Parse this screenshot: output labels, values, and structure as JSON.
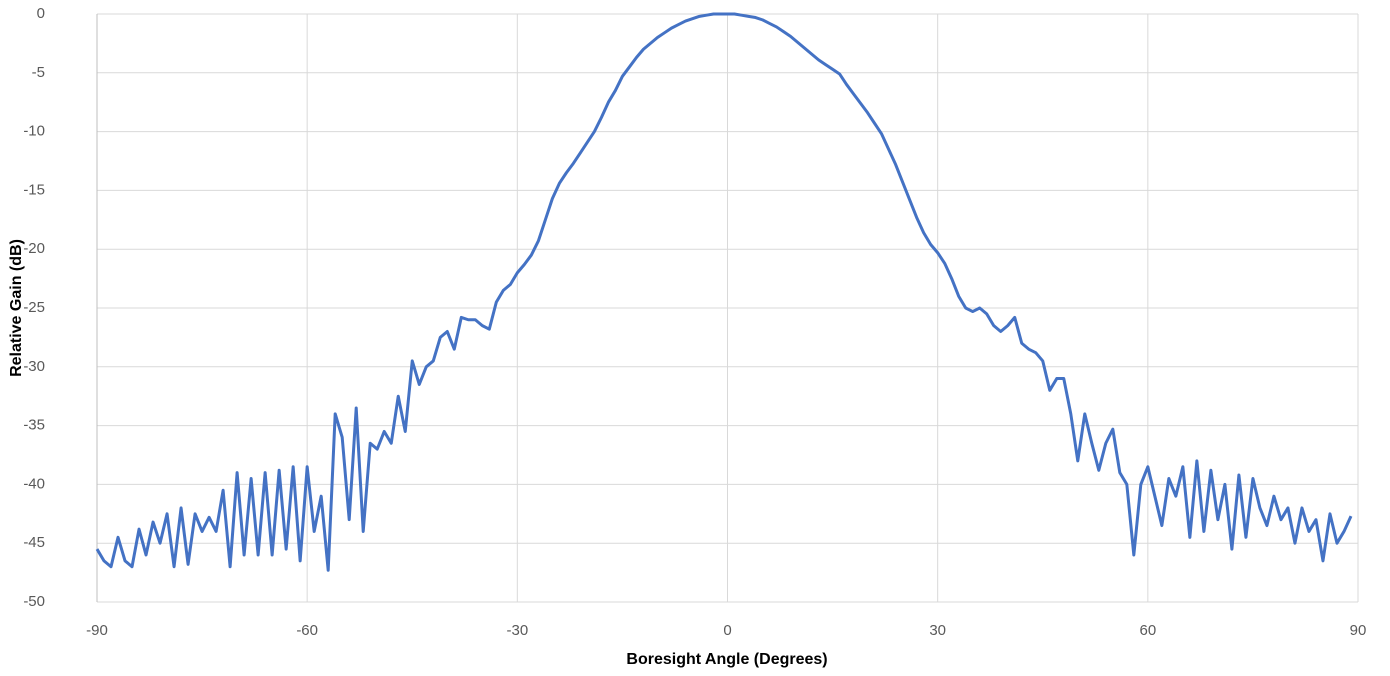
{
  "chart_data": {
    "type": "line",
    "xlabel": "Boresight Angle (Degrees)",
    "ylabel": "Relative Gain (dB)",
    "xlim": [
      -90,
      90
    ],
    "xticks": [
      -90,
      -60,
      -30,
      0,
      30,
      60,
      90
    ],
    "ylim": [
      -50,
      0
    ],
    "yticks": [
      0,
      -5,
      -10,
      -15,
      -20,
      -25,
      -30,
      -35,
      -40,
      -45,
      -50
    ],
    "grid": true,
    "x": [
      -90,
      -89,
      -88,
      -87,
      -86,
      -85,
      -84,
      -83,
      -82,
      -81,
      -80,
      -79,
      -78,
      -77,
      -76,
      -75,
      -74,
      -73,
      -72,
      -71,
      -70,
      -69,
      -68,
      -67,
      -66,
      -65,
      -64,
      -63,
      -62,
      -61,
      -60,
      -59,
      -58,
      -57,
      -56,
      -55,
      -54,
      -53,
      -52,
      -51,
      -50,
      -49,
      -48,
      -47,
      -46,
      -45,
      -44,
      -43,
      -42,
      -41,
      -40,
      -39,
      -38,
      -37,
      -36,
      -35,
      -34,
      -33,
      -32,
      -31,
      -30,
      -29,
      -28,
      -27,
      -26,
      -25,
      -24,
      -23,
      -22,
      -21,
      -20,
      -19,
      -18,
      -17,
      -16,
      -15,
      -14,
      -13,
      -12,
      -11,
      -10,
      -9,
      -8,
      -7,
      -6,
      -5,
      -4,
      -3,
      -2,
      -1,
      0,
      1,
      2,
      3,
      4,
      5,
      6,
      7,
      8,
      9,
      10,
      11,
      12,
      13,
      14,
      15,
      16,
      17,
      18,
      19,
      20,
      21,
      22,
      23,
      24,
      25,
      26,
      27,
      28,
      29,
      30,
      31,
      32,
      33,
      34,
      35,
      36,
      37,
      38,
      39,
      40,
      41,
      42,
      43,
      44,
      45,
      46,
      47,
      48,
      49,
      50,
      51,
      52,
      53,
      54,
      55,
      56,
      57,
      58,
      59,
      60,
      61,
      62,
      63,
      64,
      65,
      66,
      67,
      68,
      69,
      70,
      71,
      72,
      73,
      74,
      75,
      76,
      77,
      78,
      79,
      80,
      81,
      82,
      83,
      84,
      85,
      86,
      87,
      88,
      89
    ],
    "series": [
      {
        "color": "#4472c4",
        "values": [
          -45.5,
          -46.5,
          -47,
          -44.5,
          -46.5,
          -47,
          -43.8,
          -46,
          -43.2,
          -45,
          -42.5,
          -47,
          -42,
          -46.8,
          -42.5,
          -44,
          -42.8,
          -44,
          -40.5,
          -47,
          -39,
          -46,
          -39.5,
          -46,
          -39,
          -46,
          -38.8,
          -45.5,
          -38.5,
          -46.5,
          -38.5,
          -44,
          -41,
          -47.3,
          -34,
          -36,
          -43,
          -33.5,
          -44,
          -36.5,
          -37,
          -35.5,
          -36.5,
          -32.5,
          -35.5,
          -29.5,
          -31.5,
          -30,
          -29.5,
          -27.5,
          -27,
          -28.5,
          -25.8,
          -26,
          -26,
          -26.5,
          -26.8,
          -24.5,
          -23.5,
          -23,
          -22,
          -21.3,
          -20.5,
          -19.3,
          -17.5,
          -15.7,
          -14.4,
          -13.5,
          -12.7,
          -11.8,
          -10.9,
          -10,
          -8.8,
          -7.5,
          -6.5,
          -5.3,
          -4.5,
          -3.7,
          -3,
          -2.5,
          -2,
          -1.6,
          -1.2,
          -0.9,
          -0.6,
          -0.4,
          -0.2,
          -0.1,
          0,
          0,
          0,
          0,
          -0.1,
          -0.2,
          -0.3,
          -0.5,
          -0.8,
          -1.1,
          -1.5,
          -1.9,
          -2.4,
          -2.9,
          -3.4,
          -3.9,
          -4.3,
          -4.7,
          -5.1,
          -6,
          -6.8,
          -7.6,
          -8.4,
          -9.3,
          -10.2,
          -11.5,
          -12.8,
          -14.3,
          -15.8,
          -17.3,
          -18.6,
          -19.6,
          -20.3,
          -21.2,
          -22.5,
          -24,
          -25,
          -25.3,
          -25,
          -25.5,
          -26.5,
          -27,
          -26.5,
          -25.8,
          -28,
          -28.5,
          -28.8,
          -29.5,
          -32,
          -31,
          -31,
          -34,
          -38,
          -34,
          -36.5,
          -38.8,
          -36.5,
          -35.3,
          -39,
          -40,
          -46,
          -40,
          -38.5,
          -41,
          -43.5,
          -39.5,
          -41,
          -38.5,
          -44.5,
          -38,
          -44,
          -38.8,
          -43,
          -40,
          -45.5,
          -39.2,
          -44.5,
          -39.5,
          -42,
          -43.5,
          -41,
          -43,
          -42,
          -45,
          -42,
          -44,
          -43,
          -46.5,
          -42.5,
          -45,
          -44,
          -42.7
        ]
      }
    ]
  }
}
